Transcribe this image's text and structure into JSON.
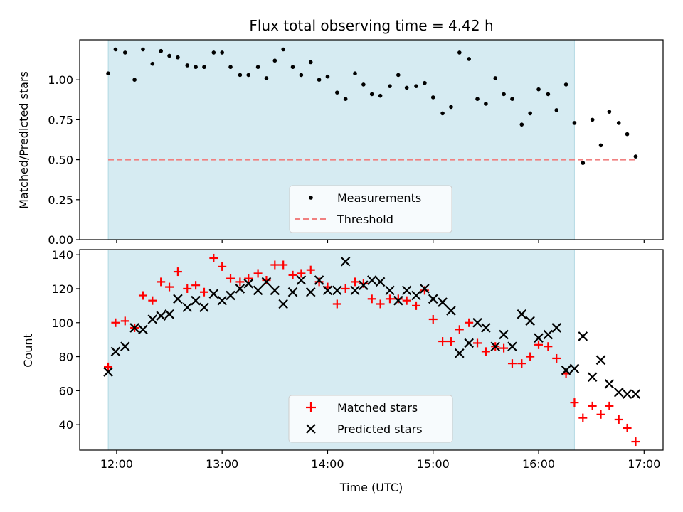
{
  "chart_data": [
    {
      "type": "scatter",
      "title": "Flux total observing time = 4.42 h",
      "xlabel": "",
      "ylabel": "Matched/Predicted stars",
      "xticks": [
        "12:00",
        "13:00",
        "14:00",
        "15:00",
        "16:00",
        "17:00"
      ],
      "xlim_hours": [
        11.65,
        17.18
      ],
      "ylim": [
        0,
        1.25
      ],
      "yticks": [
        "0.00",
        "0.25",
        "0.50",
        "0.75",
        "1.00"
      ],
      "shaded_interval_hours": [
        11.92,
        16.34
      ],
      "shade_color": "#add8e6",
      "legend_position": "lower center",
      "series": [
        {
          "name": "Measurements",
          "marker": "dot",
          "color": "#000000",
          "x": [
            11.92,
            11.99,
            12.08,
            12.17,
            12.25,
            12.34,
            12.42,
            12.5,
            12.58,
            12.67,
            12.75,
            12.83,
            12.92,
            13.0,
            13.08,
            13.17,
            13.25,
            13.34,
            13.42,
            13.5,
            13.58,
            13.67,
            13.75,
            13.84,
            13.92,
            14.0,
            14.09,
            14.17,
            14.26,
            14.34,
            14.42,
            14.5,
            14.59,
            14.67,
            14.75,
            14.84,
            14.92,
            15.0,
            15.09,
            15.17,
            15.25,
            15.34,
            15.42,
            15.5,
            15.59,
            15.67,
            15.75,
            15.84,
            15.92,
            16.0,
            16.09,
            16.17,
            16.26,
            16.34,
            16.42,
            16.51,
            16.59,
            16.67,
            16.76,
            16.84,
            16.92
          ],
          "y": [
            1.04,
            1.19,
            1.17,
            1.0,
            1.19,
            1.1,
            1.18,
            1.15,
            1.14,
            1.09,
            1.08,
            1.08,
            1.17,
            1.17,
            1.08,
            1.03,
            1.03,
            1.08,
            1.01,
            1.12,
            1.19,
            1.08,
            1.03,
            1.11,
            1.0,
            1.02,
            0.92,
            0.88,
            1.04,
            0.97,
            0.91,
            0.9,
            0.96,
            1.03,
            0.95,
            0.96,
            0.98,
            0.89,
            0.79,
            0.83,
            1.17,
            1.13,
            0.88,
            0.85,
            1.01,
            0.91,
            0.88,
            0.72,
            0.79,
            0.94,
            0.91,
            0.81,
            0.97,
            0.73,
            0.48,
            0.75,
            0.59,
            0.8,
            0.73,
            0.66,
            0.52
          ]
        },
        {
          "name": "Threshold",
          "marker": "dashed-line",
          "color": "#f08080",
          "x": [
            11.92,
            16.92
          ],
          "y": [
            0.5,
            0.5
          ]
        }
      ]
    },
    {
      "type": "scatter",
      "title": "",
      "xlabel": "Time (UTC)",
      "ylabel": "Count",
      "xticks": [
        "12:00",
        "13:00",
        "14:00",
        "15:00",
        "16:00",
        "17:00"
      ],
      "xlim_hours": [
        11.65,
        17.18
      ],
      "ylim": [
        25,
        143
      ],
      "yticks": [
        "40",
        "60",
        "80",
        "100",
        "120",
        "140"
      ],
      "shaded_interval_hours": [
        11.92,
        16.34
      ],
      "shade_color": "#add8e6",
      "legend_position": "lower center",
      "series": [
        {
          "name": "Matched stars",
          "marker": "plus",
          "color": "#ff0000",
          "x": [
            11.92,
            11.99,
            12.08,
            12.17,
            12.25,
            12.34,
            12.42,
            12.5,
            12.58,
            12.67,
            12.75,
            12.83,
            12.92,
            13.0,
            13.08,
            13.17,
            13.25,
            13.34,
            13.42,
            13.5,
            13.58,
            13.67,
            13.75,
            13.84,
            13.92,
            14.0,
            14.09,
            14.17,
            14.26,
            14.34,
            14.42,
            14.5,
            14.59,
            14.67,
            14.75,
            14.84,
            14.92,
            15.0,
            15.09,
            15.17,
            15.25,
            15.34,
            15.42,
            15.5,
            15.59,
            15.67,
            15.75,
            15.84,
            15.92,
            16.0,
            16.09,
            16.17,
            16.26,
            16.34,
            16.42,
            16.51,
            16.59,
            16.67,
            16.76,
            16.84,
            16.92
          ],
          "y": [
            74,
            100,
            101,
            97,
            116,
            113,
            124,
            121,
            130,
            120,
            122,
            118,
            138,
            133,
            126,
            124,
            126,
            129,
            125,
            134,
            134,
            128,
            129,
            131,
            124,
            121,
            111,
            120,
            124,
            123,
            114,
            111,
            114,
            114,
            113,
            110,
            119,
            102,
            89,
            89,
            96,
            100,
            88,
            83,
            86,
            85,
            76,
            76,
            80,
            87,
            86,
            79,
            70,
            53,
            44,
            51,
            46,
            51,
            43,
            38,
            30
          ]
        },
        {
          "name": "Predicted stars",
          "marker": "x",
          "color": "#000000",
          "x": [
            11.92,
            11.99,
            12.08,
            12.17,
            12.25,
            12.34,
            12.42,
            12.5,
            12.58,
            12.67,
            12.75,
            12.83,
            12.92,
            13.0,
            13.08,
            13.17,
            13.25,
            13.34,
            13.42,
            13.5,
            13.58,
            13.67,
            13.75,
            13.84,
            13.92,
            14.0,
            14.09,
            14.17,
            14.26,
            14.34,
            14.42,
            14.5,
            14.59,
            14.67,
            14.75,
            14.84,
            14.92,
            15.0,
            15.09,
            15.17,
            15.25,
            15.34,
            15.42,
            15.5,
            15.59,
            15.67,
            15.75,
            15.84,
            15.92,
            16.0,
            16.09,
            16.17,
            16.26,
            16.34,
            16.42,
            16.51,
            16.59,
            16.67,
            16.76,
            16.84,
            16.92
          ],
          "y": [
            71,
            83,
            86,
            97,
            96,
            102,
            104,
            105,
            114,
            109,
            113,
            109,
            117,
            113,
            116,
            120,
            123,
            119,
            124,
            119,
            111,
            118,
            125,
            118,
            125,
            119,
            119,
            136,
            119,
            122,
            125,
            124,
            119,
            113,
            119,
            116,
            120,
            114,
            112,
            107,
            82,
            88,
            100,
            97,
            86,
            93,
            86,
            105,
            101,
            91,
            93,
            97,
            72,
            73,
            92,
            68,
            78,
            64,
            59,
            58,
            58
          ]
        }
      ]
    }
  ]
}
